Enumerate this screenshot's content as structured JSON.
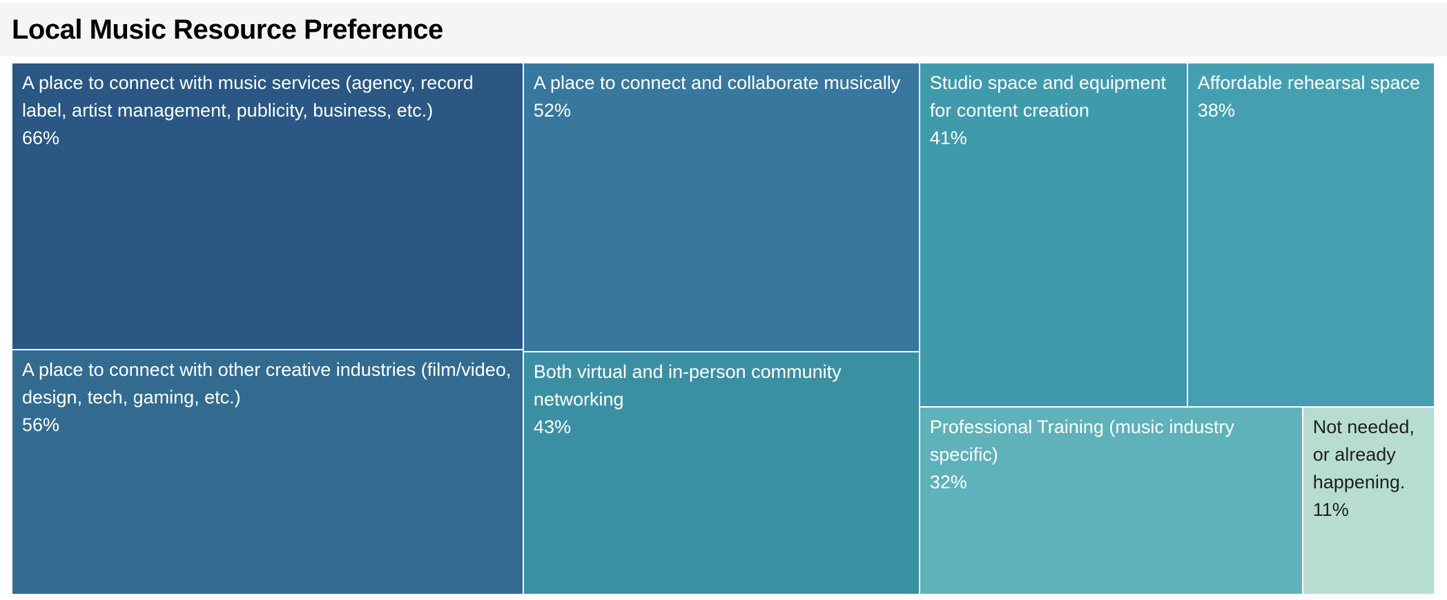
{
  "header": {
    "title": "Local Music Resource Preference"
  },
  "chart_data": {
    "type": "treemap",
    "title": "Local Music Resource Preference",
    "value_unit": "%",
    "legend": "none",
    "cells": [
      {
        "label": "A place to connect with music services (agency, record label, artist management, publicity, business, etc.)",
        "value": 66,
        "value_label": "66%",
        "color": "#2a5783",
        "text_color": "#ffffff"
      },
      {
        "label": "A place to connect and collaborate musically",
        "value": 52,
        "value_label": "52%",
        "color": "#38789e",
        "text_color": "#ffffff"
      },
      {
        "label": "Studio space and equipment for content creation",
        "value": 41,
        "value_label": "41%",
        "color": "#3f9aac",
        "text_color": "#ffffff"
      },
      {
        "label": "Affordable rehearsal space",
        "value": 38,
        "value_label": "38%",
        "color": "#44a0b1",
        "text_color": "#ffffff"
      },
      {
        "label": "A place to connect with other creative industries (film/video, design, tech, gaming, etc.)",
        "value": 56,
        "value_label": "56%",
        "color": "#336b90",
        "text_color": "#ffffff"
      },
      {
        "label": "Both virtual and in-person community networking",
        "value": 43,
        "value_label": "43%",
        "color": "#3b8fa3",
        "text_color": "#ffffff"
      },
      {
        "label": "Professional Training (music industry specific)",
        "value": 32,
        "value_label": "32%",
        "color": "#5fb1ba",
        "text_color": "#ffffff"
      },
      {
        "label": "Not needed, or already happening.",
        "value": 11,
        "value_label": "11%",
        "color": "#b7ddd0",
        "text_color": "#1e1e1e"
      }
    ]
  }
}
